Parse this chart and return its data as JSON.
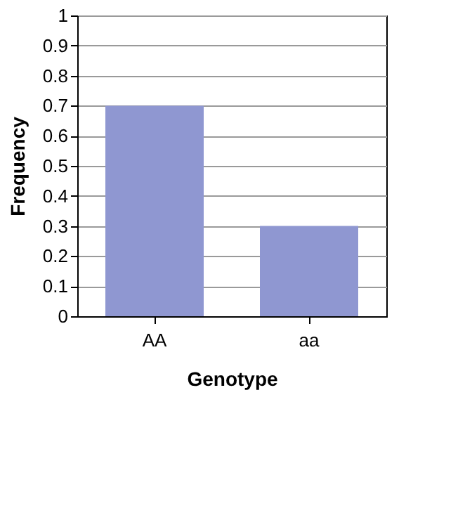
{
  "chart_data": {
    "type": "bar",
    "xlabel": "Genotype",
    "ylabel": "Frequency",
    "categories": [
      "AA",
      "aa"
    ],
    "values": [
      0.7,
      0.3
    ],
    "color": "#8f97d1",
    "ylim": [
      0,
      1
    ],
    "yticks": [
      0,
      0.1,
      0.2,
      0.3,
      0.4,
      0.5,
      0.6,
      0.7,
      0.8,
      0.9,
      1
    ],
    "grid": "y"
  }
}
